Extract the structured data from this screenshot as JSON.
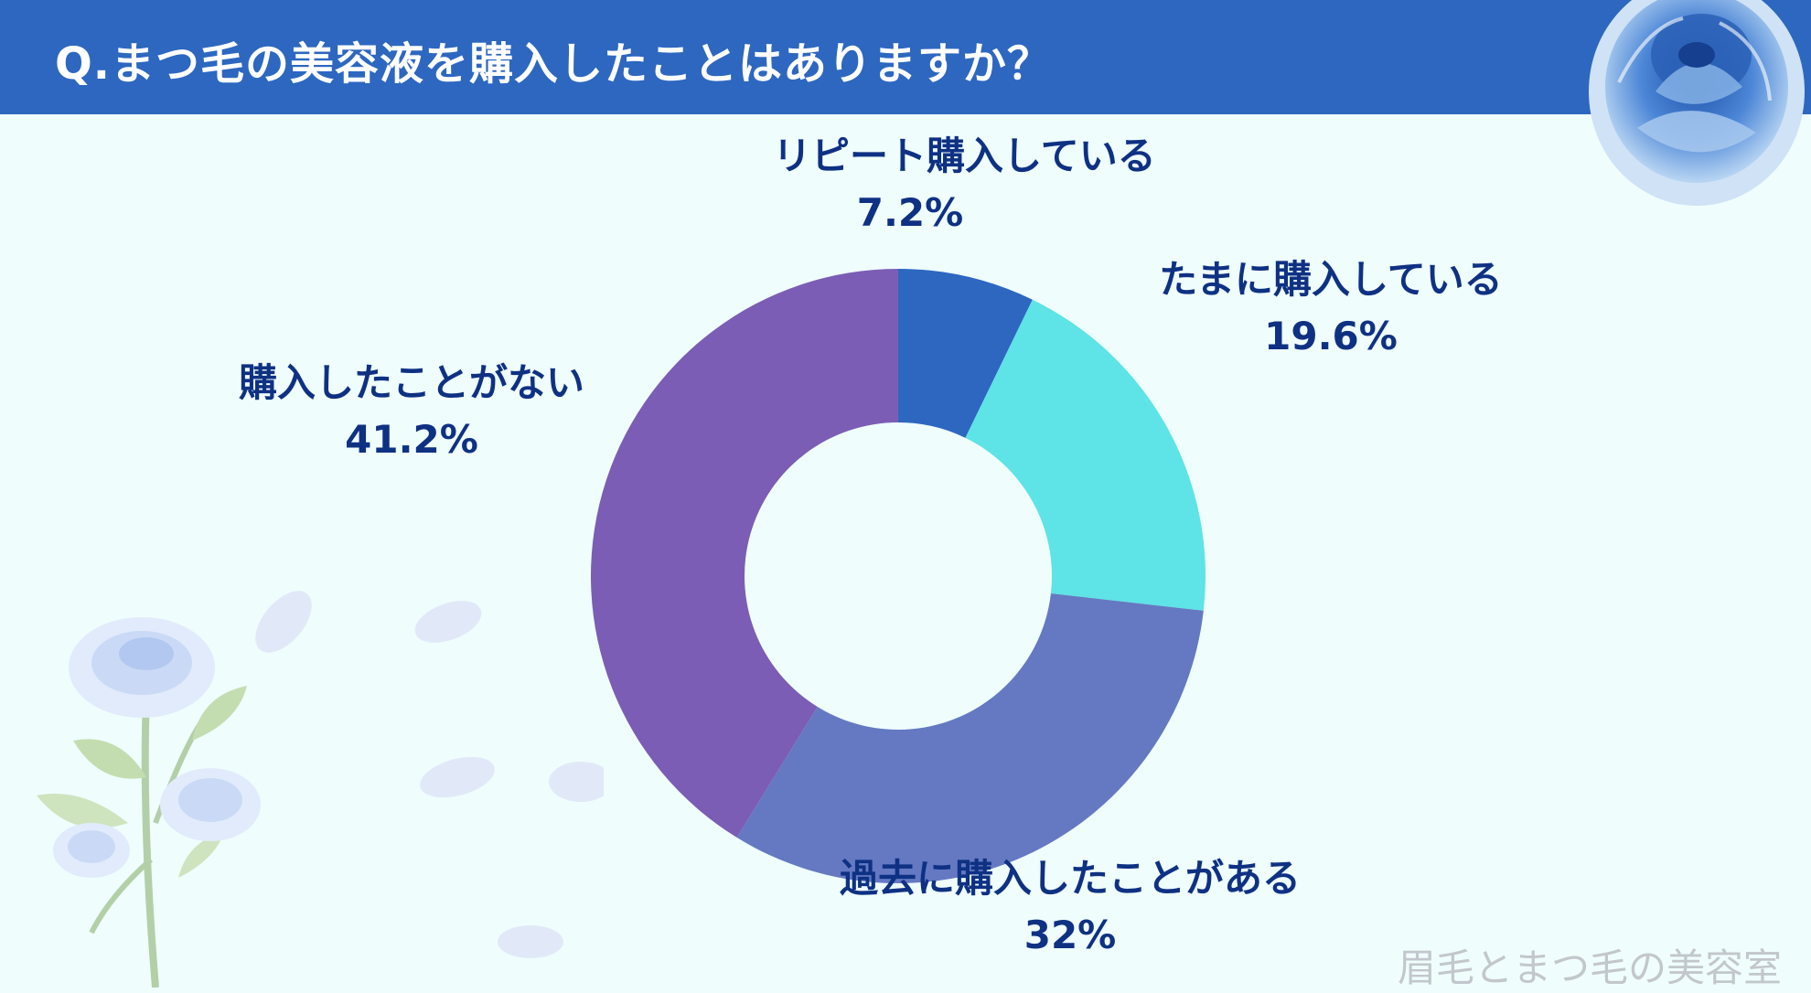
{
  "header": {
    "title": "Q.まつ毛の美容液を購入したことはありますか？"
  },
  "watermark": "眉毛とまつ毛の美容室",
  "colors": {
    "header_bg": "#2d67c0",
    "background": "#effdfd",
    "label_text": "#0e3183"
  },
  "chart_data": {
    "type": "pie",
    "variant": "donut",
    "title": "",
    "categories": [
      "リピート購入している",
      "たまに購入している",
      "過去に購入したことがある",
      "購入したことがない"
    ],
    "values": [
      7.2,
      19.6,
      32,
      41.2
    ],
    "value_labels": [
      "7.2%",
      "19.6%",
      "32%",
      "41.2%"
    ],
    "colors": [
      "#2d67c0",
      "#5ee3e6",
      "#6479c2",
      "#7b5db5"
    ],
    "legend": "none"
  }
}
